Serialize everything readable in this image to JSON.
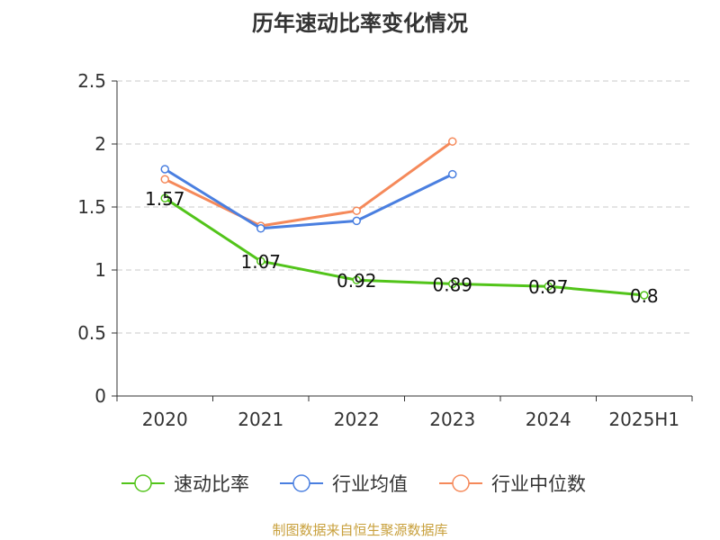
{
  "chart_data": {
    "type": "line",
    "title": "历年速动比率变化情况",
    "categories": [
      "2020",
      "2021",
      "2022",
      "2023",
      "2024",
      "2025H1"
    ],
    "ylim": [
      0,
      2.5
    ],
    "yticks": [
      "0",
      "0.5",
      "1",
      "1.5",
      "2",
      "2.5"
    ],
    "grid": true,
    "legend_position": "bottom",
    "series": [
      {
        "name": "速动比率",
        "color": "#52c41a",
        "values": [
          1.57,
          1.07,
          0.92,
          0.89,
          0.87,
          0.8
        ],
        "labels": [
          "1.57",
          "1.07",
          "0.92",
          "0.89",
          "0.87",
          "0.8"
        ]
      },
      {
        "name": "行业均值",
        "color": "#4a7fe0",
        "values": [
          1.8,
          1.33,
          1.39,
          1.76,
          null,
          null
        ]
      },
      {
        "name": "行业中位数",
        "color": "#f5895a",
        "values": [
          1.72,
          1.35,
          1.47,
          2.02,
          null,
          null
        ]
      }
    ],
    "source": "制图数据来自恒生聚源数据库",
    "source_color": "#c8a03c"
  }
}
